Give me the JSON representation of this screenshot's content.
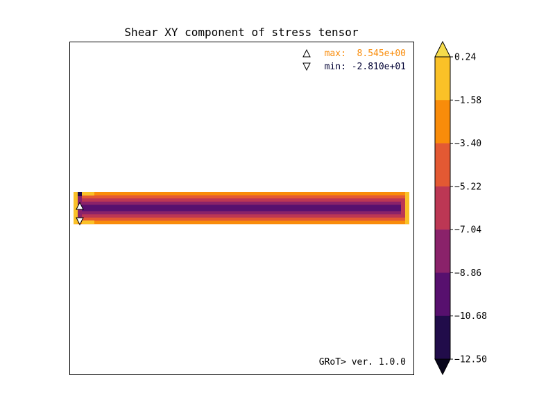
{
  "chart_data": {
    "type": "heatmap",
    "title": "Shear XY component of stress tensor",
    "annotations": {
      "max_label": "max:  8.545e+00",
      "min_label": "min: -2.810e+01",
      "version": "GRoT> ver. 1.0.0"
    },
    "colorbar": {
      "tick_labels": [
        "0.24",
        "−1.58",
        "−3.40",
        "−5.22",
        "−7.04",
        "−8.86",
        "−10.68",
        "−12.50"
      ],
      "levels": [
        0.24,
        -1.58,
        -3.4,
        -5.22,
        -7.04,
        -8.86,
        -10.68,
        -12.5
      ],
      "bands": [
        "#fac127",
        "#f98c0a",
        "#e35933",
        "#bc3754",
        "#8a226a",
        "#57106e",
        "#210c4a"
      ],
      "extend_max_color": "#f5db4b",
      "extend_min_color": "#07051b"
    },
    "field": {
      "rows": [
        {
          "color": "#f98c0a"
        },
        {
          "color": "#e35933"
        },
        {
          "color": "#bc3754"
        },
        {
          "color": "#8a226a"
        },
        {
          "color": "#57106e"
        },
        {
          "color": "#57106e"
        },
        {
          "color": "#8a226a"
        },
        {
          "color": "#bc3754"
        },
        {
          "color": "#e35933"
        },
        {
          "color": "#f98c0a"
        }
      ]
    },
    "grid": false
  }
}
